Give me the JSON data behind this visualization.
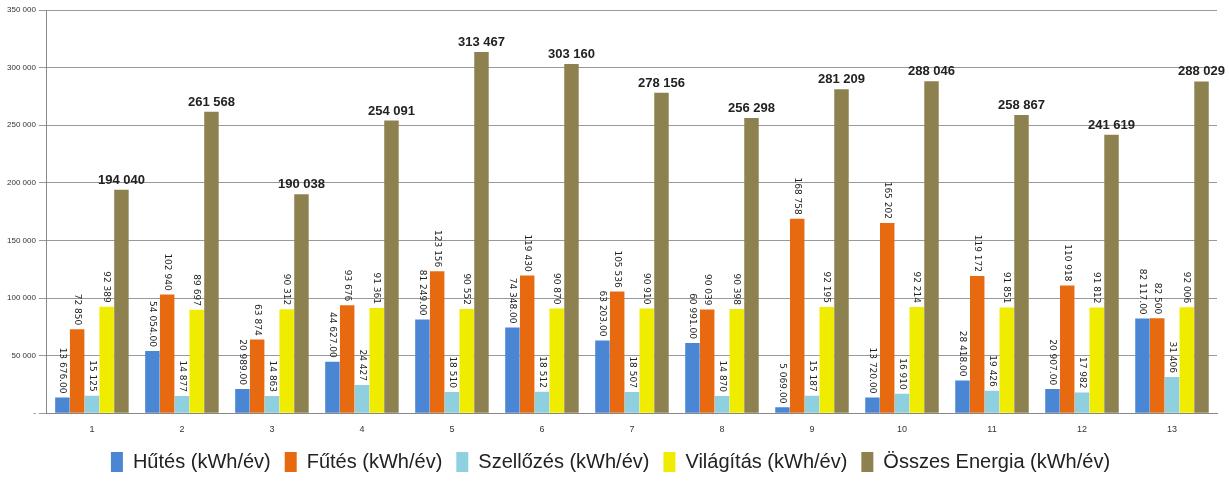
{
  "chart_data": {
    "type": "bar",
    "categories": [
      "1",
      "2",
      "3",
      "4",
      "5",
      "6",
      "7",
      "8",
      "9",
      "10",
      "11",
      "12",
      "13"
    ],
    "series": [
      {
        "name": "Hűtés (kWh/év)",
        "color": "#4a86d4",
        "values": [
          13676,
          54054,
          20989,
          44627,
          81249,
          74348,
          63203,
          60991,
          5069,
          13720,
          28418,
          20907,
          82117
        ],
        "value_labels": [
          "13 676.00",
          "54 054.00",
          "20 989.00",
          "44 627.00",
          "81 249.00",
          "74 348.00",
          "63 203.00",
          "60 991.00",
          "5 069.00",
          "13 720.00",
          "28 418.00",
          "20 907.00",
          "82 117.00"
        ]
      },
      {
        "name": "Fűtés (kWh/év)",
        "color": "#e86a10",
        "values": [
          72850,
          102940,
          63874,
          93676,
          123156,
          119430,
          105536,
          90039,
          168758,
          165202,
          119172,
          110918,
          82500
        ],
        "value_labels": [
          "72 850",
          "102 940",
          "63 874",
          "93 676",
          "123 156",
          "119 430",
          "105 536",
          "90 039",
          "168 758",
          "165 202",
          "119 172",
          "110 918",
          "82 500"
        ]
      },
      {
        "name": "Szellőzés (kWh/év)",
        "color": "#8fd0e0",
        "values": [
          15125,
          14877,
          14863,
          24427,
          18510,
          18512,
          18507,
          14870,
          15187,
          16910,
          19426,
          17982,
          31406
        ],
        "value_labels": [
          "15 125",
          "14 877",
          "14 863",
          "24 427",
          "18 510",
          "18 512",
          "18 507",
          "14 870",
          "15 187",
          "16 910",
          "19 426",
          "17 982",
          "31 406"
        ]
      },
      {
        "name": "Világítás (kWh/év)",
        "color": "#f0ec00",
        "values": [
          92389,
          89697,
          90312,
          91361,
          90552,
          90870,
          90910,
          90398,
          92195,
          92214,
          91851,
          91812,
          92006
        ],
        "value_labels": [
          "92 389",
          "89 697",
          "90 312",
          "91 361",
          "90 552",
          "90 870",
          "90 910",
          "90 398",
          "92 195",
          "92 214",
          "91 851",
          "91 812",
          "92 006"
        ]
      },
      {
        "name": "Összes Energia (kWh/év)",
        "color": "#8e8150",
        "values": [
          194040,
          261568,
          190038,
          254091,
          313467,
          303160,
          278156,
          256298,
          281209,
          288046,
          258867,
          241619,
          288029
        ],
        "value_labels": [
          "194 040",
          "261 568",
          "190 038",
          "254 091",
          "313 467",
          "303 160",
          "278 156",
          "256 298",
          "281 209",
          "288 046",
          "258 867",
          "241 619",
          "288 029"
        ]
      }
    ],
    "ylim": [
      0,
      350000
    ],
    "yticks": [
      {
        "value": 0,
        "label": "-"
      },
      {
        "value": 50000,
        "label": "50 000"
      },
      {
        "value": 100000,
        "label": "100 000"
      },
      {
        "value": 150000,
        "label": "150 000"
      },
      {
        "value": 200000,
        "label": "200 000"
      },
      {
        "value": 250000,
        "label": "250 000"
      },
      {
        "value": 300000,
        "label": "300 000"
      },
      {
        "value": 350000,
        "label": "350 000"
      }
    ],
    "grid": "y",
    "legend": "bottom"
  }
}
